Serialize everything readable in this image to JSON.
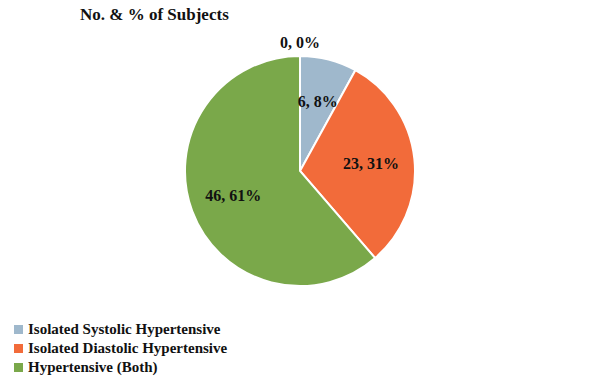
{
  "chart_data": {
    "type": "pie",
    "title": "No. & % of Subjects",
    "categories": [
      "Isolated Systolic Hypertensive",
      "Isolated Diastolic Hypertensive",
      "Hypertensive (Both)",
      null
    ],
    "values": [
      6,
      23,
      46,
      0
    ],
    "value_labels": [
      "6, 8%",
      "23, 31%",
      "46, 61%",
      "0, 0%"
    ],
    "colors": [
      "#9fb8cc",
      "#f26b3a",
      "#7aa84a",
      "#c8c8c8"
    ],
    "data_labels": true,
    "legend": "bottom-left"
  }
}
